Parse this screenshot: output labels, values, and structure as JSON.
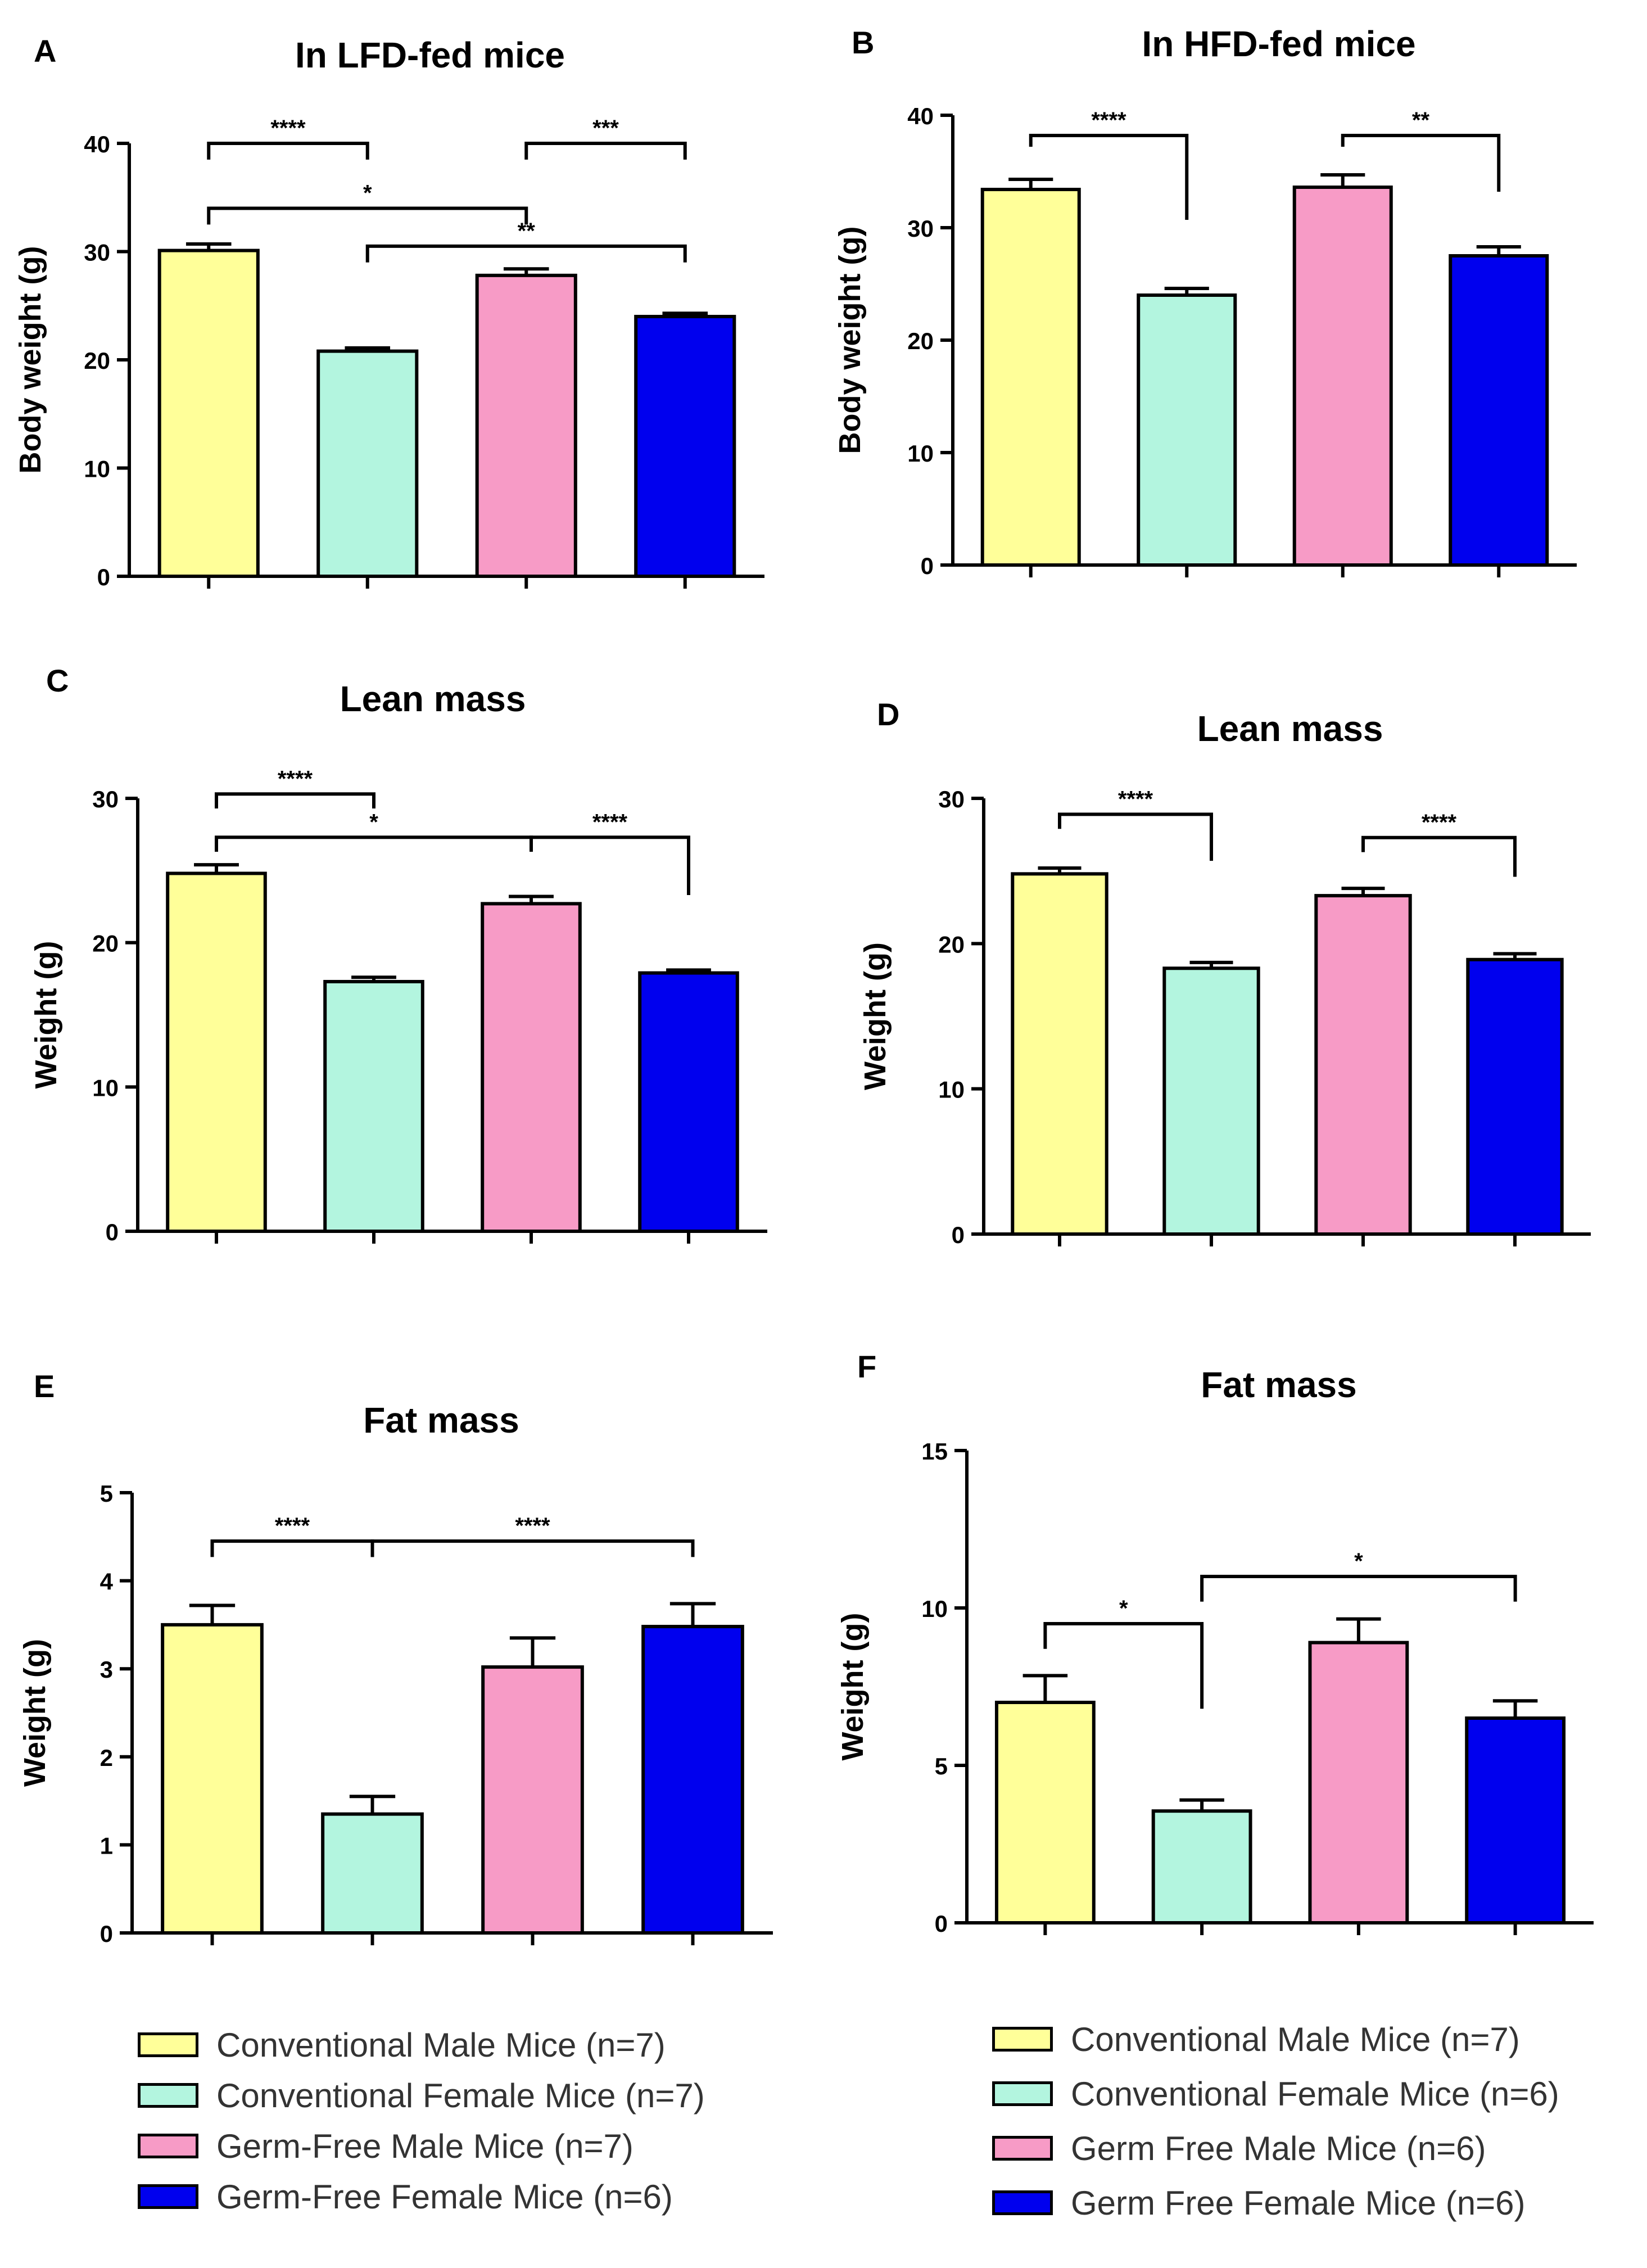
{
  "colors": {
    "conv_male": "#FFFF99",
    "conv_female": "#B3F5DF",
    "gf_male": "#F79BC6",
    "gf_female": "#0000EE",
    "axis": "#000000"
  },
  "chart_data": [
    {
      "panel": "A",
      "type": "bar",
      "title": "In LFD-fed mice",
      "ylabel": "Body weight (g)",
      "xlabel": "",
      "ylim": [
        0,
        40
      ],
      "yticks": [
        0,
        10,
        20,
        30,
        40
      ],
      "categories": [
        "Conventional Male Mice",
        "Conventional Female Mice",
        "Germ-Free Male Mice",
        "Germ-Free Female Mice"
      ],
      "values": [
        30.1,
        20.8,
        27.8,
        24.0
      ],
      "errors": [
        0.6,
        0.3,
        0.6,
        0.3
      ],
      "significance": [
        {
          "from": 0,
          "to": 1,
          "label": "****",
          "y": 40,
          "drops": [
            1.5,
            1.5
          ]
        },
        {
          "from": 2,
          "to": 3,
          "label": "***",
          "y": 40,
          "drops": [
            1.5,
            1.5
          ]
        },
        {
          "from": 0,
          "to": 2,
          "label": "*",
          "y": 34,
          "drops": [
            1.5,
            1.5
          ]
        },
        {
          "from": 1,
          "to": 3,
          "label": "**",
          "y": 30.5,
          "drops": [
            1.5,
            1.5
          ]
        }
      ]
    },
    {
      "panel": "B",
      "type": "bar",
      "title": "In HFD-fed mice",
      "ylabel": "Body weight (g)",
      "xlabel": "",
      "ylim": [
        0,
        40
      ],
      "yticks": [
        0,
        10,
        20,
        30,
        40
      ],
      "categories": [
        "Conventional Male Mice",
        "Conventional Female Mice",
        "Germ Free Male Mice",
        "Germ Free Female Mice"
      ],
      "values": [
        33.4,
        24.0,
        33.6,
        27.5
      ],
      "errors": [
        0.9,
        0.6,
        1.1,
        0.8
      ],
      "significance": [
        {
          "from": 0,
          "to": 1,
          "label": "****",
          "y": 38.2,
          "drops": [
            1.0,
            7.5
          ]
        },
        {
          "from": 2,
          "to": 3,
          "label": "**",
          "y": 38.2,
          "drops": [
            1.0,
            5.0
          ]
        }
      ]
    },
    {
      "panel": "C",
      "type": "bar",
      "title": "Lean mass",
      "ylabel": "Weight (g)",
      "xlabel": "",
      "ylim": [
        0,
        30
      ],
      "yticks": [
        0,
        10,
        20,
        30
      ],
      "categories": [
        "Conventional Male Mice",
        "Conventional Female Mice",
        "Germ-Free Male Mice",
        "Germ-Free Female Mice"
      ],
      "values": [
        24.8,
        17.3,
        22.7,
        17.9
      ],
      "errors": [
        0.6,
        0.3,
        0.5,
        0.2
      ],
      "significance": [
        {
          "from": 0,
          "to": 1,
          "label": "****",
          "y": 30.3,
          "drops": [
            1.0,
            1.0
          ]
        },
        {
          "from": 0,
          "to": 2,
          "label": "*",
          "y": 27.3,
          "drops": [
            1.0,
            1.0
          ]
        },
        {
          "from": 2,
          "to": 3,
          "label": "****",
          "y": 27.3,
          "drops": [
            1.0,
            4.0
          ]
        }
      ]
    },
    {
      "panel": "D",
      "type": "bar",
      "title": "Lean mass",
      "ylabel": "Weight (g)",
      "xlabel": "",
      "ylim": [
        0,
        30
      ],
      "yticks": [
        0,
        10,
        20,
        30
      ],
      "categories": [
        "Conventional Male Mice",
        "Conventional Female Mice",
        "Germ Free Male Mice",
        "Germ Free Female Mice"
      ],
      "values": [
        24.8,
        18.3,
        23.3,
        18.9
      ],
      "errors": [
        0.4,
        0.4,
        0.5,
        0.4
      ],
      "significance": [
        {
          "from": 0,
          "to": 1,
          "label": "****",
          "y": 28.9,
          "drops": [
            1.0,
            3.2
          ]
        },
        {
          "from": 2,
          "to": 3,
          "label": "****",
          "y": 27.3,
          "drops": [
            1.0,
            2.7
          ]
        }
      ]
    },
    {
      "panel": "E",
      "type": "bar",
      "title": "Fat mass",
      "ylabel": "Weight (g)",
      "xlabel": "",
      "ylim": [
        0,
        5
      ],
      "yticks": [
        0,
        1,
        2,
        3,
        4,
        5
      ],
      "categories": [
        "Conventional Male Mice",
        "Conventional Female Mice",
        "Germ-Free Male Mice",
        "Germ-Free Female Mice"
      ],
      "values": [
        3.5,
        1.35,
        3.02,
        3.48
      ],
      "errors": [
        0.22,
        0.2,
        0.33,
        0.26
      ],
      "significance": [
        {
          "from": 0,
          "to": 1,
          "label": "****",
          "y": 4.45,
          "drops": [
            0.18,
            0.18
          ]
        },
        {
          "from": 1,
          "to": 3,
          "label": "****",
          "y": 4.45,
          "drops": [
            0.18,
            0.18
          ]
        }
      ]
    },
    {
      "panel": "F",
      "type": "bar",
      "title": "Fat mass",
      "ylabel": "Weight (g)",
      "xlabel": "",
      "ylim": [
        0,
        15
      ],
      "yticks": [
        0,
        5,
        10,
        15
      ],
      "categories": [
        "Conventional Male Mice",
        "Conventional Female Mice",
        "Germ Free Male Mice",
        "Germ Free Female Mice"
      ],
      "values": [
        7.0,
        3.55,
        8.9,
        6.5
      ],
      "errors": [
        0.85,
        0.35,
        0.75,
        0.55
      ],
      "significance": [
        {
          "from": 0,
          "to": 1,
          "label": "*",
          "y": 9.5,
          "drops": [
            0.8,
            2.7
          ]
        },
        {
          "from": 1,
          "to": 3,
          "label": "*",
          "y": 11.0,
          "drops": [
            0.8,
            0.8
          ]
        }
      ]
    }
  ],
  "legends": [
    {
      "items": [
        {
          "label": "Conventional Male Mice (n=7)",
          "color_key": "conv_male"
        },
        {
          "label": "Conventional Female Mice (n=7)",
          "color_key": "conv_female"
        },
        {
          "label": "Germ-Free Male Mice (n=7)",
          "color_key": "gf_male"
        },
        {
          "label": "Germ-Free Female Mice (n=6)",
          "color_key": "gf_female"
        }
      ]
    },
    {
      "items": [
        {
          "label": "Conventional Male Mice (n=7)",
          "color_key": "conv_male"
        },
        {
          "label": "Conventional Female Mice (n=6)",
          "color_key": "conv_female"
        },
        {
          "label": "Germ Free Male Mice (n=6)",
          "color_key": "gf_male"
        },
        {
          "label": "Germ Free Female Mice (n=6)",
          "color_key": "gf_female"
        }
      ]
    }
  ]
}
